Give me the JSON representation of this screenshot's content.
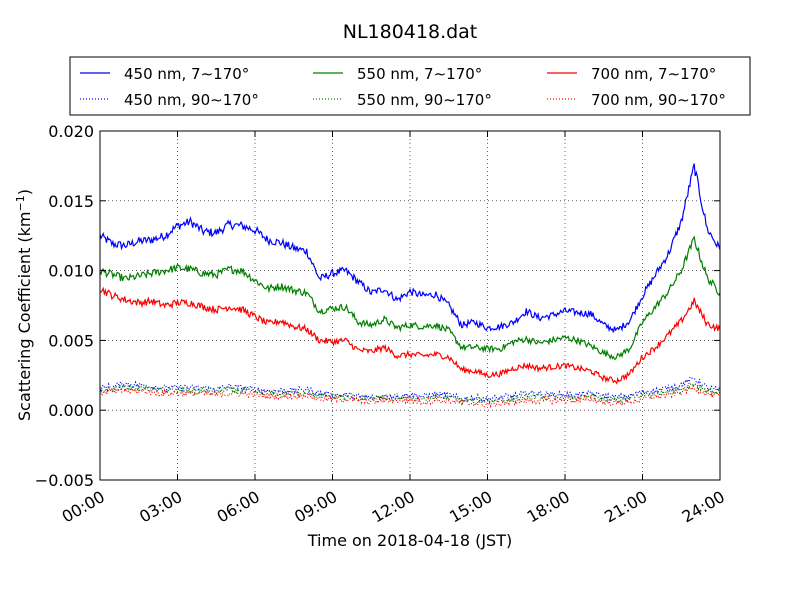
{
  "chart_data": {
    "type": "line",
    "title": "NL180418.dat",
    "xlabel": "Time on 2018-04-18 (JST)",
    "ylabel_main": "Scattering Coefficient (km",
    "ylabel_sup": "−1",
    "ylabel_close": ")",
    "xlim_hours": [
      0,
      24
    ],
    "ylim": [
      -0.005,
      0.02
    ],
    "x_ticks": [
      "00:00",
      "03:00",
      "06:00",
      "09:00",
      "12:00",
      "15:00",
      "18:00",
      "21:00",
      "24:00"
    ],
    "y_ticks": [
      "−0.005",
      "0.000",
      "0.005",
      "0.010",
      "0.015",
      "0.020"
    ],
    "grid": true,
    "legend_position": "top",
    "x_hours": [
      0,
      0.5,
      1,
      1.5,
      2,
      2.5,
      3,
      3.5,
      4,
      4.5,
      5,
      5.5,
      6,
      6.5,
      7,
      7.5,
      8,
      8.5,
      9,
      9.5,
      10,
      10.5,
      11,
      11.5,
      12,
      12.5,
      13,
      13.5,
      14,
      14.5,
      15,
      15.5,
      16,
      16.5,
      17,
      17.5,
      18,
      18.5,
      19,
      19.5,
      20,
      20.5,
      21,
      21.5,
      22,
      22.5,
      23,
      23.5,
      24
    ],
    "series": [
      {
        "name": "450 nm, 7∼170°",
        "color": "#0000ff",
        "style": "solid",
        "values": [
          0.0125,
          0.0119,
          0.0118,
          0.0121,
          0.0122,
          0.0125,
          0.0132,
          0.0135,
          0.0128,
          0.0127,
          0.0133,
          0.0132,
          0.0129,
          0.0122,
          0.012,
          0.0116,
          0.0114,
          0.0094,
          0.0098,
          0.01,
          0.0092,
          0.0084,
          0.0087,
          0.0079,
          0.0085,
          0.0082,
          0.0083,
          0.0075,
          0.0061,
          0.0063,
          0.0059,
          0.006,
          0.0063,
          0.0071,
          0.0066,
          0.0068,
          0.0071,
          0.007,
          0.0069,
          0.0061,
          0.0057,
          0.0064,
          0.0082,
          0.0097,
          0.0112,
          0.0135,
          0.0175,
          0.013,
          0.0115
        ]
      },
      {
        "name": "550 nm, 7∼170°",
        "color": "#008000",
        "style": "solid",
        "values": [
          0.01,
          0.0097,
          0.0094,
          0.0096,
          0.0098,
          0.01,
          0.0102,
          0.0101,
          0.0098,
          0.0097,
          0.0101,
          0.01,
          0.0093,
          0.0087,
          0.0089,
          0.0086,
          0.0084,
          0.0071,
          0.0073,
          0.0074,
          0.0063,
          0.0061,
          0.0065,
          0.0059,
          0.0061,
          0.006,
          0.0061,
          0.0057,
          0.0045,
          0.0045,
          0.0044,
          0.0044,
          0.0049,
          0.0051,
          0.0048,
          0.005,
          0.0052,
          0.005,
          0.0046,
          0.0041,
          0.0038,
          0.0044,
          0.0063,
          0.0074,
          0.0085,
          0.01,
          0.0123,
          0.0095,
          0.0084
        ]
      },
      {
        "name": "700 nm, 7∼170°",
        "color": "#ff0000",
        "style": "solid",
        "values": [
          0.0087,
          0.0082,
          0.0079,
          0.0077,
          0.0078,
          0.0075,
          0.0077,
          0.0077,
          0.0074,
          0.0072,
          0.0074,
          0.0072,
          0.0067,
          0.0062,
          0.0064,
          0.006,
          0.0058,
          0.005,
          0.0049,
          0.005,
          0.0043,
          0.0042,
          0.0045,
          0.0039,
          0.004,
          0.0039,
          0.004,
          0.0038,
          0.0029,
          0.0028,
          0.0025,
          0.0026,
          0.003,
          0.0032,
          0.003,
          0.0031,
          0.0032,
          0.003,
          0.0028,
          0.0023,
          0.0021,
          0.0026,
          0.0038,
          0.0045,
          0.0054,
          0.0064,
          0.0078,
          0.0062,
          0.0058
        ]
      },
      {
        "name": "450 nm, 90∼170°",
        "color": "#0000ff",
        "style": "dotted",
        "values": [
          0.0016,
          0.0017,
          0.0019,
          0.0018,
          0.0017,
          0.0016,
          0.0016,
          0.0016,
          0.0016,
          0.0015,
          0.0017,
          0.0016,
          0.0015,
          0.0014,
          0.0014,
          0.0014,
          0.0015,
          0.0012,
          0.0011,
          0.0011,
          0.001,
          0.0009,
          0.001,
          0.001,
          0.0011,
          0.001,
          0.0011,
          0.0011,
          0.0008,
          0.0009,
          0.0008,
          0.0009,
          0.001,
          0.0012,
          0.0012,
          0.0011,
          0.0011,
          0.0011,
          0.0012,
          0.001,
          0.0009,
          0.001,
          0.0013,
          0.0014,
          0.0016,
          0.0018,
          0.0023,
          0.0016,
          0.0014
        ]
      },
      {
        "name": "550 nm, 90∼170°",
        "color": "#008000",
        "style": "dotted",
        "values": [
          0.0014,
          0.0015,
          0.0016,
          0.0016,
          0.0015,
          0.0014,
          0.0014,
          0.0014,
          0.0014,
          0.0013,
          0.0015,
          0.0014,
          0.0013,
          0.0012,
          0.0012,
          0.0012,
          0.0013,
          0.001,
          0.001,
          0.0009,
          0.0009,
          0.0008,
          0.0009,
          0.0009,
          0.0009,
          0.0008,
          0.0009,
          0.0009,
          0.0007,
          0.0007,
          0.0007,
          0.0007,
          0.0008,
          0.001,
          0.001,
          0.0009,
          0.0009,
          0.0009,
          0.001,
          0.0008,
          0.0007,
          0.0008,
          0.0011,
          0.0012,
          0.0014,
          0.0015,
          0.0019,
          0.0014,
          0.0012
        ]
      },
      {
        "name": "700 nm, 90∼170°",
        "color": "#ff0000",
        "style": "dotted",
        "values": [
          0.0013,
          0.0013,
          0.0014,
          0.0014,
          0.0013,
          0.0012,
          0.0012,
          0.0012,
          0.0012,
          0.0011,
          0.0012,
          0.0012,
          0.0011,
          0.001,
          0.001,
          0.001,
          0.0011,
          0.0008,
          0.0008,
          0.0008,
          0.0007,
          0.0006,
          0.0007,
          0.0007,
          0.0007,
          0.0006,
          0.0007,
          0.0007,
          0.0005,
          0.0005,
          0.0004,
          0.0005,
          0.0006,
          0.0007,
          0.0007,
          0.0007,
          0.0007,
          0.0007,
          0.0008,
          0.0006,
          0.0005,
          0.0006,
          0.0008,
          0.001,
          0.0011,
          0.0013,
          0.0016,
          0.0012,
          0.001
        ]
      }
    ]
  }
}
